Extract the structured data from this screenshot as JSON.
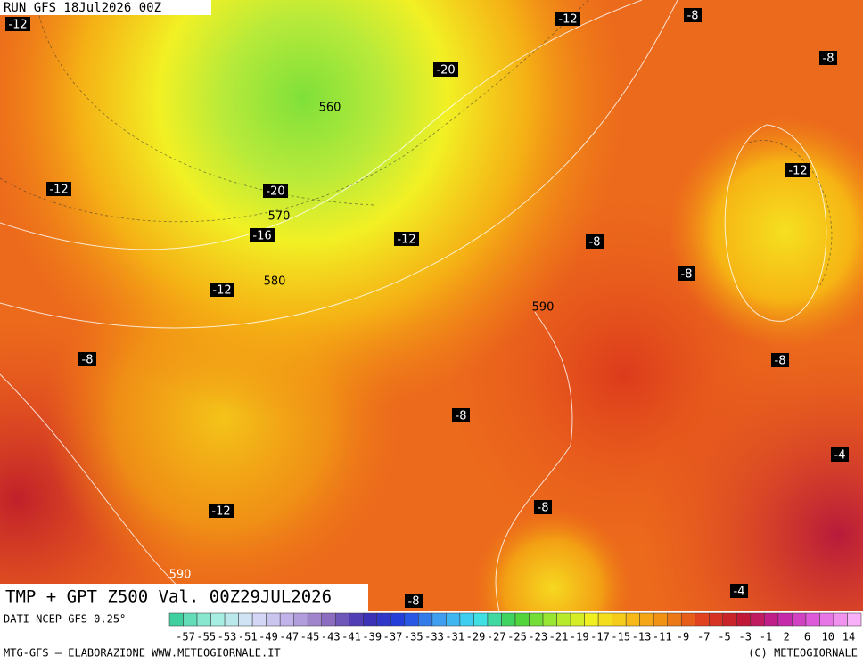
{
  "header": {
    "run": "RUN GFS 18Jul2026 00Z"
  },
  "map": {
    "labels": [
      "-12",
      "-12",
      "-8",
      "-8",
      "-20",
      "560",
      "-12",
      "-12",
      "-20",
      "570",
      "-16",
      "-12",
      "-8",
      "-8",
      "-12",
      "580",
      "590",
      "-8",
      "-8",
      "-8",
      "-4",
      "-12",
      "-8",
      "590",
      "-8",
      "-4"
    ]
  },
  "title": "TMP + GPT Z500 Val. 00Z29JUL2026",
  "footer": {
    "source": "DATI NCEP GFS 0.25°",
    "credit": "MTG-GFS — ELABORAZIONE WWW.METEOGIORNALE.IT",
    "copyright": "(C) METEOGIORNALE"
  },
  "colorbar": {
    "labels": [
      "-57",
      "-55",
      "-53",
      "-51",
      "-49",
      "-47",
      "-45",
      "-43",
      "-41",
      "-39",
      "-37",
      "-35",
      "-33",
      "-31",
      "-29",
      "-27",
      "-25",
      "-23",
      "-21",
      "-19",
      "-17",
      "-15",
      "-13",
      "-11",
      "-9",
      "-7",
      "-5",
      "-3",
      "-1",
      "2",
      "6",
      "10",
      "14"
    ]
  }
}
